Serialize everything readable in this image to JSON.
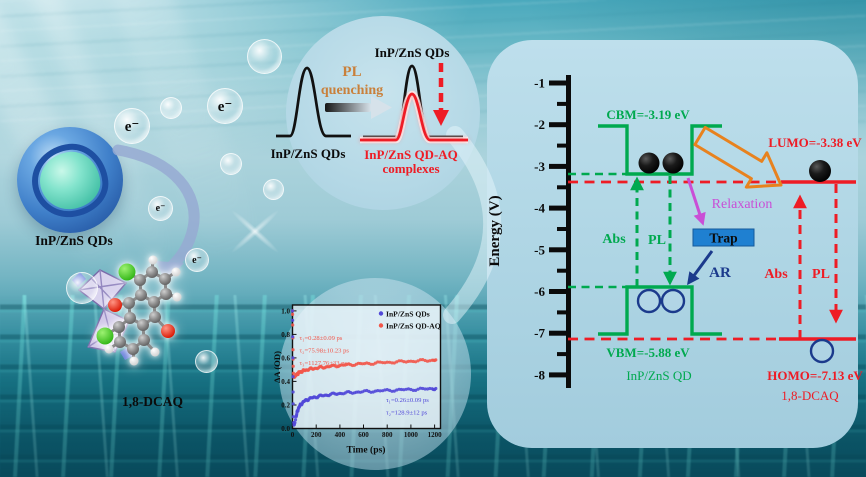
{
  "colors": {
    "green": "#00a94f",
    "red": "#ee1c25",
    "orange": "#e8821e",
    "magenta": "#c94fd6",
    "navy": "#1b3a8c",
    "trap_blue": "#1f80d1",
    "quench_text": "#c9803b",
    "panel_blue": "#b5d8e6"
  },
  "scene": {
    "qd_sphere_label": "InP/ZnS QDs",
    "molecule_label": "1,8-DCAQ",
    "electron_label": "e⁻"
  },
  "pl_circle": {
    "left_peak_label": "InP/ZnS QDs",
    "quench_line1": "PL",
    "quench_line2": "quenching",
    "right_peak_label": "InP/ZnS QDs",
    "complex_line1": "InP/ZnS QD-AQ",
    "complex_line2": "complexes"
  },
  "chart_data": {
    "type": "scatter",
    "title": "",
    "xlabel": "Time (ps)",
    "ylabel": "ΔA (OD)",
    "xlim": [
      0,
      1250
    ],
    "ylim": [
      0,
      1.05
    ],
    "x_ticks": [
      0,
      200,
      400,
      600,
      800,
      1000,
      1200
    ],
    "x_tick_labels": [
      "0",
      "200",
      "400",
      "600",
      "800",
      "1000",
      "1200"
    ],
    "y_ticks": [
      0.0,
      0.2,
      0.4,
      0.6,
      0.8,
      1.0
    ],
    "y_tick_labels": [
      "0.0",
      "0.2",
      "0.4",
      "0.6",
      "0.8",
      "1.0"
    ],
    "grid": false,
    "legend_position": "top-right",
    "series": [
      {
        "name": "InP/ZnS QDs",
        "color": "#5148d8",
        "annotations": [
          "τ₁=0.26±0.09 ps",
          "τ₂=128.9±12 ps"
        ],
        "x": [
          0,
          1,
          2,
          3,
          4,
          5,
          6,
          8,
          10,
          13,
          16,
          20,
          25,
          30,
          36,
          43,
          50,
          60,
          70,
          85,
          100,
          120,
          140,
          165,
          190,
          220,
          250,
          285,
          320,
          360,
          400,
          445,
          490,
          540,
          590,
          645,
          700,
          760,
          820,
          880,
          940,
          1000,
          1060,
          1120,
          1180,
          1210
        ],
        "y": [
          1.0,
          0.92,
          0.78,
          0.6,
          0.44,
          0.31,
          0.21,
          0.1,
          0.05,
          0.03,
          0.035,
          0.05,
          0.075,
          0.1,
          0.125,
          0.15,
          0.17,
          0.19,
          0.205,
          0.22,
          0.232,
          0.243,
          0.252,
          0.26,
          0.267,
          0.273,
          0.279,
          0.284,
          0.289,
          0.294,
          0.298,
          0.302,
          0.306,
          0.309,
          0.312,
          0.315,
          0.318,
          0.321,
          0.324,
          0.327,
          0.33,
          0.332,
          0.334,
          0.336,
          0.338,
          0.34
        ]
      },
      {
        "name": "InP/ZnS QD-AQ",
        "color": "#f2564a",
        "annotations": [
          "τ₁=0.28±0.09 ps",
          "τ₂=75.98±10.23 ps",
          "τ₃=1127.76±33 ps"
        ],
        "x": [
          0,
          1,
          2,
          3,
          4,
          5,
          6,
          8,
          10,
          13,
          16,
          20,
          25,
          30,
          36,
          43,
          50,
          60,
          70,
          85,
          100,
          120,
          140,
          165,
          190,
          220,
          250,
          285,
          320,
          360,
          400,
          445,
          490,
          540,
          590,
          645,
          700,
          760,
          820,
          880,
          940,
          1000,
          1060,
          1120,
          1180,
          1210
        ],
        "y": [
          1.0,
          0.97,
          0.88,
          0.77,
          0.67,
          0.59,
          0.53,
          0.47,
          0.445,
          0.435,
          0.435,
          0.44,
          0.447,
          0.452,
          0.458,
          0.465,
          0.472,
          0.478,
          0.483,
          0.488,
          0.494,
          0.499,
          0.503,
          0.508,
          0.512,
          0.516,
          0.52,
          0.524,
          0.528,
          0.532,
          0.536,
          0.54,
          0.543,
          0.547,
          0.55,
          0.553,
          0.556,
          0.56,
          0.563,
          0.566,
          0.569,
          0.572,
          0.575,
          0.578,
          0.581,
          0.583
        ]
      }
    ]
  },
  "energy_diagram": {
    "axis_label": "Energy (V)",
    "axis": {
      "tick_labels": [
        "-1",
        "-2",
        "-3",
        "-4",
        "-5",
        "-6",
        "-7",
        "-8"
      ],
      "range": [
        -8,
        -1
      ]
    },
    "levels": {
      "cbm_eV": -3.19,
      "lumo_eV": -3.38,
      "vbm_eV": -5.88,
      "homo_eV": -7.13
    },
    "cbm_label": "CBM=-3.19 eV",
    "lumo_label": "LUMO=-3.38 eV",
    "vbm_label": "VBM=-5.88 eV",
    "homo_label": "HOMO=-7.13 eV",
    "qd_name": "InP/ZnS QD",
    "acceptor_name": "1,8-DCAQ",
    "abs_qd_label": "Abs",
    "pl_qd_label": "PL",
    "relaxation_label": "Relaxation",
    "trap_label": "Trap",
    "ar_label": "AR",
    "abs_acceptor_label": "Abs",
    "pl_acceptor_label": "PL"
  }
}
